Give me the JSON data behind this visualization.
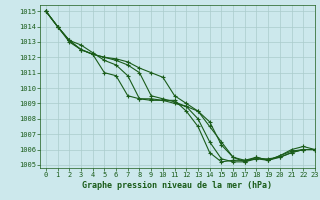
{
  "title": "Graphe pression niveau de la mer (hPa)",
  "bg_color": "#cce8ec",
  "grid_color": "#aacccc",
  "line_color": "#1a5c1a",
  "xlim": [
    -0.5,
    23
  ],
  "ylim": [
    1004.8,
    1015.4
  ],
  "yticks": [
    1005,
    1006,
    1007,
    1008,
    1009,
    1010,
    1011,
    1012,
    1013,
    1014,
    1015
  ],
  "xticks": [
    0,
    1,
    2,
    3,
    4,
    5,
    6,
    7,
    8,
    9,
    10,
    11,
    12,
    13,
    14,
    15,
    16,
    17,
    18,
    19,
    20,
    21,
    22,
    23
  ],
  "series": [
    [
      1015.0,
      1014.0,
      1013.0,
      1012.5,
      1012.2,
      1011.0,
      1010.8,
      1009.5,
      1009.3,
      1009.2,
      1009.2,
      1009.2,
      1008.5,
      1007.5,
      1005.8,
      1005.2,
      1005.3,
      1005.3,
      1005.5,
      1005.3,
      1005.6,
      1006.0,
      1006.2,
      1006.0
    ],
    [
      1015.0,
      1014.0,
      1013.1,
      1012.8,
      1012.3,
      1011.8,
      1011.5,
      1010.8,
      1009.3,
      1009.3,
      1009.2,
      1009.0,
      1008.8,
      1008.0,
      1006.5,
      1005.4,
      1005.2,
      1005.2,
      1005.4,
      1005.4,
      1005.5,
      1005.8,
      1006.0,
      1006.0
    ],
    [
      1015.0,
      1014.0,
      1013.1,
      1012.5,
      1012.2,
      1012.0,
      1011.8,
      1011.5,
      1011.0,
      1009.5,
      1009.3,
      1009.1,
      1008.8,
      1008.5,
      1007.8,
      1006.3,
      1005.5,
      1005.2,
      1005.5,
      1005.3,
      1005.6,
      1005.9,
      1006.0,
      1006.0
    ],
    [
      1015.0,
      1014.0,
      1013.1,
      1012.5,
      1012.2,
      1012.0,
      1011.9,
      1011.7,
      1011.3,
      1011.0,
      1010.7,
      1009.5,
      1009.0,
      1008.5,
      1007.5,
      1006.5,
      1005.5,
      1005.3,
      1005.4,
      1005.3,
      1005.5,
      1005.8,
      1006.0,
      1006.0
    ]
  ]
}
